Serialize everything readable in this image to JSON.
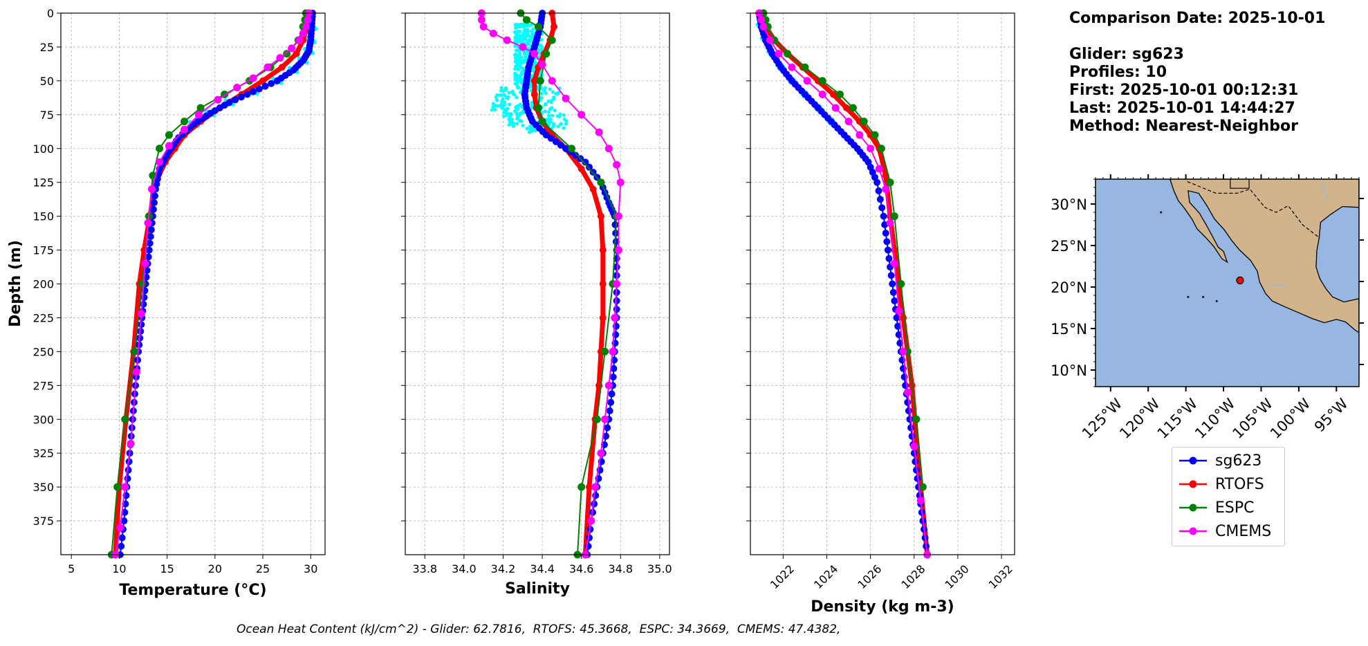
{
  "info": {
    "comparison_date": "Comparison Date: 2025-10-01",
    "glider": "Glider: sg623",
    "profiles": "Profiles: 10",
    "first": "First: 2025-10-01 00:12:31",
    "last": "Last: 2025-10-01 14:44:27",
    "method": "Method: Nearest-Neighbor"
  },
  "footer": "Ocean Heat Content (kJ/cm^2) - Glider: 62.7816,  RTOFS: 45.3668,  ESPC: 34.3669,  CMEMS: 47.4382,",
  "legend": [
    {
      "label": "sg623",
      "color": "#0000ff"
    },
    {
      "label": "RTOFS",
      "color": "#ff0000"
    },
    {
      "label": "ESPC",
      "color": "#008000"
    },
    {
      "label": "CMEMS",
      "color": "#ff00ff"
    }
  ],
  "chart_data": [
    {
      "type": "line",
      "xlabel": "Temperature (°C)",
      "ylabel": "Depth (m)",
      "xlim": [
        3.9,
        31.5
      ],
      "ylim": [
        400,
        0
      ],
      "xticks": [
        5,
        10,
        15,
        20,
        25,
        30
      ],
      "yticks": [
        0,
        25,
        50,
        75,
        100,
        125,
        150,
        175,
        200,
        225,
        250,
        275,
        300,
        325,
        350,
        375
      ],
      "grid": true,
      "series": [
        {
          "name": "sg623",
          "color": "#0000ff",
          "x": [
            30.2,
            30.1,
            30.0,
            29.8,
            29.2,
            28.2,
            26.5,
            24.0,
            21.5,
            19.5,
            17.8,
            16.2,
            15.2,
            14.2,
            13.8,
            13.5,
            13.2,
            12.9,
            12.6,
            12.3,
            12.0,
            11.7,
            11.4,
            11.1,
            10.8,
            10.5,
            10.1
          ],
          "y": [
            0,
            10,
            20,
            28,
            35,
            42,
            50,
            58,
            66,
            74,
            82,
            92,
            102,
            115,
            130,
            150,
            170,
            190,
            210,
            230,
            250,
            275,
            300,
            325,
            350,
            375,
            400
          ]
        },
        {
          "name": "RTOFS",
          "color": "#ff0000",
          "x": [
            29.8,
            29.6,
            29.2,
            28.5,
            27.0,
            25.0,
            22.8,
            20.5,
            18.5,
            16.8,
            15.8,
            14.8,
            13.8,
            13.2,
            12.6,
            12.1,
            11.5,
            10.7,
            10.0,
            9.6
          ],
          "y": [
            0,
            10,
            20,
            30,
            40,
            50,
            60,
            70,
            80,
            90,
            100,
            110,
            125,
            150,
            175,
            200,
            250,
            300,
            350,
            400
          ]
        },
        {
          "name": "ESPC",
          "color": "#008000",
          "x": [
            29.5,
            29.4,
            29.2,
            28.7,
            27.5,
            25.8,
            23.6,
            21.0,
            18.5,
            16.8,
            15.2,
            14.2,
            13.5,
            13.1,
            12.4,
            11.6,
            10.6,
            9.8,
            9.2
          ],
          "y": [
            0,
            5,
            10,
            20,
            30,
            40,
            50,
            60,
            70,
            80,
            90,
            100,
            120,
            150,
            200,
            250,
            300,
            350,
            400
          ]
        },
        {
          "name": "CMEMS",
          "color": "#ff00ff",
          "x": [
            29.8,
            29.7,
            29.5,
            29.2,
            28.8,
            28.0,
            26.8,
            25.5,
            24.0,
            22.3,
            20.3,
            18.3,
            16.8,
            15.2,
            14.2,
            13.4,
            13.0,
            12.7,
            12.3,
            11.8,
            11.2,
            10.6,
            10.1,
            9.6
          ],
          "y": [
            0,
            5,
            10,
            15,
            20,
            26,
            33,
            40,
            48,
            55,
            64,
            75,
            86,
            98,
            110,
            130,
            155,
            185,
            222,
            265,
            318,
            350,
            380,
            400
          ]
        }
      ]
    },
    {
      "type": "line",
      "xlabel": "Salinity",
      "xlim": [
        33.7,
        35.05
      ],
      "ylim": [
        400,
        0
      ],
      "xticks": [
        33.8,
        34.0,
        34.2,
        34.4,
        34.6,
        34.8,
        35.0
      ],
      "grid": true,
      "series": [
        {
          "name": "sg623",
          "color": "#0000ff",
          "x": [
            34.4,
            34.39,
            34.37,
            34.35,
            34.33,
            34.32,
            34.31,
            34.32,
            34.35,
            34.42,
            34.52,
            34.62,
            34.7,
            34.74,
            34.77,
            34.78,
            34.78,
            34.78,
            34.77,
            34.76,
            34.74,
            34.71,
            34.68,
            34.65,
            34.63
          ],
          "y": [
            0,
            10,
            20,
            30,
            40,
            50,
            60,
            70,
            80,
            90,
            100,
            110,
            125,
            140,
            150,
            175,
            200,
            225,
            250,
            275,
            300,
            325,
            350,
            375,
            400
          ]
        },
        {
          "name": "RTOFS",
          "color": "#ff0000",
          "x": [
            34.45,
            34.46,
            34.44,
            34.41,
            34.38,
            34.36,
            34.36,
            34.37,
            34.4,
            34.45,
            34.52,
            34.6,
            34.66,
            34.7,
            34.71,
            34.71,
            34.71,
            34.7,
            34.69,
            34.67,
            34.64,
            34.62
          ],
          "y": [
            0,
            10,
            20,
            30,
            40,
            50,
            60,
            70,
            80,
            90,
            100,
            115,
            130,
            150,
            175,
            200,
            225,
            250,
            275,
            300,
            350,
            400
          ]
        },
        {
          "name": "ESPC",
          "color": "#008000",
          "x": [
            34.29,
            34.32,
            34.38,
            34.45,
            34.42,
            34.39,
            34.38,
            34.4,
            34.55,
            34.7,
            34.78,
            34.76,
            34.72,
            34.68,
            34.6,
            34.58
          ],
          "y": [
            0,
            5,
            10,
            20,
            30,
            50,
            70,
            80,
            100,
            125,
            150,
            200,
            250,
            300,
            350,
            400
          ]
        },
        {
          "name": "CMEMS",
          "color": "#ff00ff",
          "x": [
            34.09,
            34.09,
            34.1,
            34.15,
            34.22,
            34.3,
            34.36,
            34.4,
            34.45,
            34.52,
            34.6,
            34.69,
            34.74,
            34.78,
            34.8,
            34.79,
            34.79,
            34.78,
            34.77,
            34.76,
            34.74,
            34.72,
            34.7,
            34.67,
            34.65,
            34.62
          ],
          "y": [
            0,
            5,
            10,
            15,
            20,
            25,
            30,
            38,
            50,
            63,
            75,
            88,
            100,
            112,
            125,
            150,
            175,
            200,
            225,
            250,
            275,
            300,
            325,
            350,
            375,
            400
          ]
        }
      ]
    },
    {
      "type": "line",
      "xlabel": "Density (kg m-3)",
      "xlim": [
        1020.5,
        1032.6
      ],
      "ylim": [
        400,
        0
      ],
      "xticks": [
        1022,
        1024,
        1026,
        1028,
        1030,
        1032
      ],
      "grid": true,
      "series": [
        {
          "name": "sg623",
          "color": "#0000ff",
          "x": [
            1020.9,
            1021.0,
            1021.2,
            1021.5,
            1021.9,
            1022.4,
            1023.0,
            1023.6,
            1024.2,
            1024.8,
            1025.4,
            1025.9,
            1026.3,
            1026.6,
            1026.8,
            1027.0,
            1027.2,
            1027.4,
            1027.6,
            1027.8,
            1028.0,
            1028.2,
            1028.4,
            1028.6
          ],
          "y": [
            0,
            10,
            20,
            30,
            40,
            50,
            60,
            70,
            80,
            90,
            100,
            110,
            125,
            150,
            175,
            200,
            225,
            250,
            275,
            300,
            325,
            350,
            375,
            400
          ]
        },
        {
          "name": "RTOFS",
          "color": "#ff0000",
          "x": [
            1021.0,
            1021.2,
            1021.6,
            1022.2,
            1022.9,
            1023.6,
            1024.3,
            1024.9,
            1025.5,
            1026.0,
            1026.4,
            1026.7,
            1026.9,
            1027.1,
            1027.5,
            1027.9,
            1028.3,
            1028.6
          ],
          "y": [
            0,
            10,
            20,
            30,
            40,
            50,
            60,
            70,
            80,
            90,
            100,
            120,
            150,
            175,
            225,
            275,
            350,
            400
          ]
        },
        {
          "name": "ESPC",
          "color": "#008000",
          "x": [
            1021.1,
            1021.2,
            1021.3,
            1021.6,
            1022.2,
            1023.0,
            1023.8,
            1024.6,
            1025.2,
            1025.7,
            1026.2,
            1026.5,
            1026.9,
            1027.1,
            1027.4,
            1027.7,
            1028.1,
            1028.4
          ],
          "y": [
            0,
            5,
            10,
            20,
            30,
            40,
            50,
            60,
            70,
            80,
            90,
            100,
            125,
            150,
            200,
            250,
            300,
            350
          ]
        },
        {
          "name": "CMEMS",
          "color": "#ff00ff",
          "x": [
            1020.9,
            1021.0,
            1021.1,
            1021.4,
            1021.8,
            1022.4,
            1023.1,
            1023.8,
            1024.4,
            1025.0,
            1025.5,
            1026.0,
            1026.4,
            1026.7,
            1026.9,
            1027.1,
            1027.3,
            1027.5,
            1027.7,
            1028.0,
            1028.3,
            1028.6
          ],
          "y": [
            0,
            5,
            10,
            20,
            30,
            40,
            50,
            60,
            70,
            80,
            90,
            100,
            115,
            130,
            155,
            185,
            220,
            250,
            280,
            320,
            360,
            400
          ]
        }
      ]
    },
    {
      "type": "map",
      "xlim": [
        -127,
        -92
      ],
      "ylim": [
        8,
        33
      ],
      "xticks": [
        -125,
        -120,
        -115,
        -110,
        -105,
        -100,
        -95
      ],
      "xticklabels": [
        "125°W",
        "120°W",
        "115°W",
        "110°W",
        "105°W",
        "100°W",
        "95°W"
      ],
      "yticks": [
        10,
        15,
        20,
        25,
        30
      ],
      "yticklabels": [
        "10°N",
        "15°N",
        "20°N",
        "25°N",
        "30°N"
      ],
      "ocean_color": "#97b6e1",
      "land_color": "#d2b48c",
      "marker": {
        "lon": -107.8,
        "lat": 20.8,
        "color": "#ff0000"
      }
    }
  ]
}
